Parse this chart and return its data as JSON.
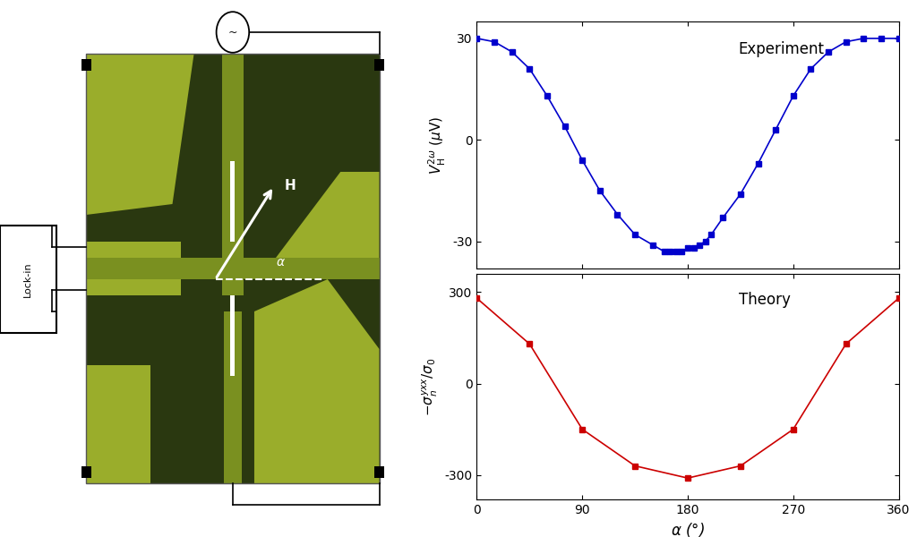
{
  "exp_alpha": [
    0,
    15,
    30,
    45,
    60,
    75,
    90,
    105,
    120,
    135,
    150,
    160,
    165,
    170,
    175,
    180,
    185,
    190,
    195,
    200,
    210,
    225,
    240,
    255,
    270,
    285,
    300,
    315,
    330,
    345,
    360
  ],
  "exp_values": [
    30,
    29,
    26,
    21,
    13,
    4,
    -6,
    -15,
    -22,
    -28,
    -31,
    -33,
    -33,
    -33,
    -33,
    -32,
    -32,
    -31,
    -30,
    -28,
    -23,
    -16,
    -7,
    3,
    13,
    21,
    26,
    29,
    30,
    30,
    30
  ],
  "theory_alpha": [
    0,
    45,
    90,
    135,
    180,
    225,
    270,
    315,
    360
  ],
  "theory_values": [
    280,
    130,
    -150,
    -270,
    -310,
    -270,
    -150,
    130,
    280
  ],
  "exp_color": "#0000cc",
  "theory_color": "#cc0000",
  "exp_label": "Experiment",
  "theory_label": "Theory",
  "xlabel": "α (°)",
  "xlim": [
    0,
    360
  ],
  "exp_ylim": [
    -38,
    35
  ],
  "theory_ylim": [
    -380,
    360
  ],
  "xticks": [
    0,
    90,
    180,
    270,
    360
  ],
  "exp_yticks": [
    -30,
    0,
    30
  ],
  "theory_yticks": [
    -300,
    0,
    300
  ],
  "bg_color": "#ffffff",
  "chip_green": "#9aad2b",
  "chip_dark": "#2a3810",
  "chip_green2": "#7a9020"
}
